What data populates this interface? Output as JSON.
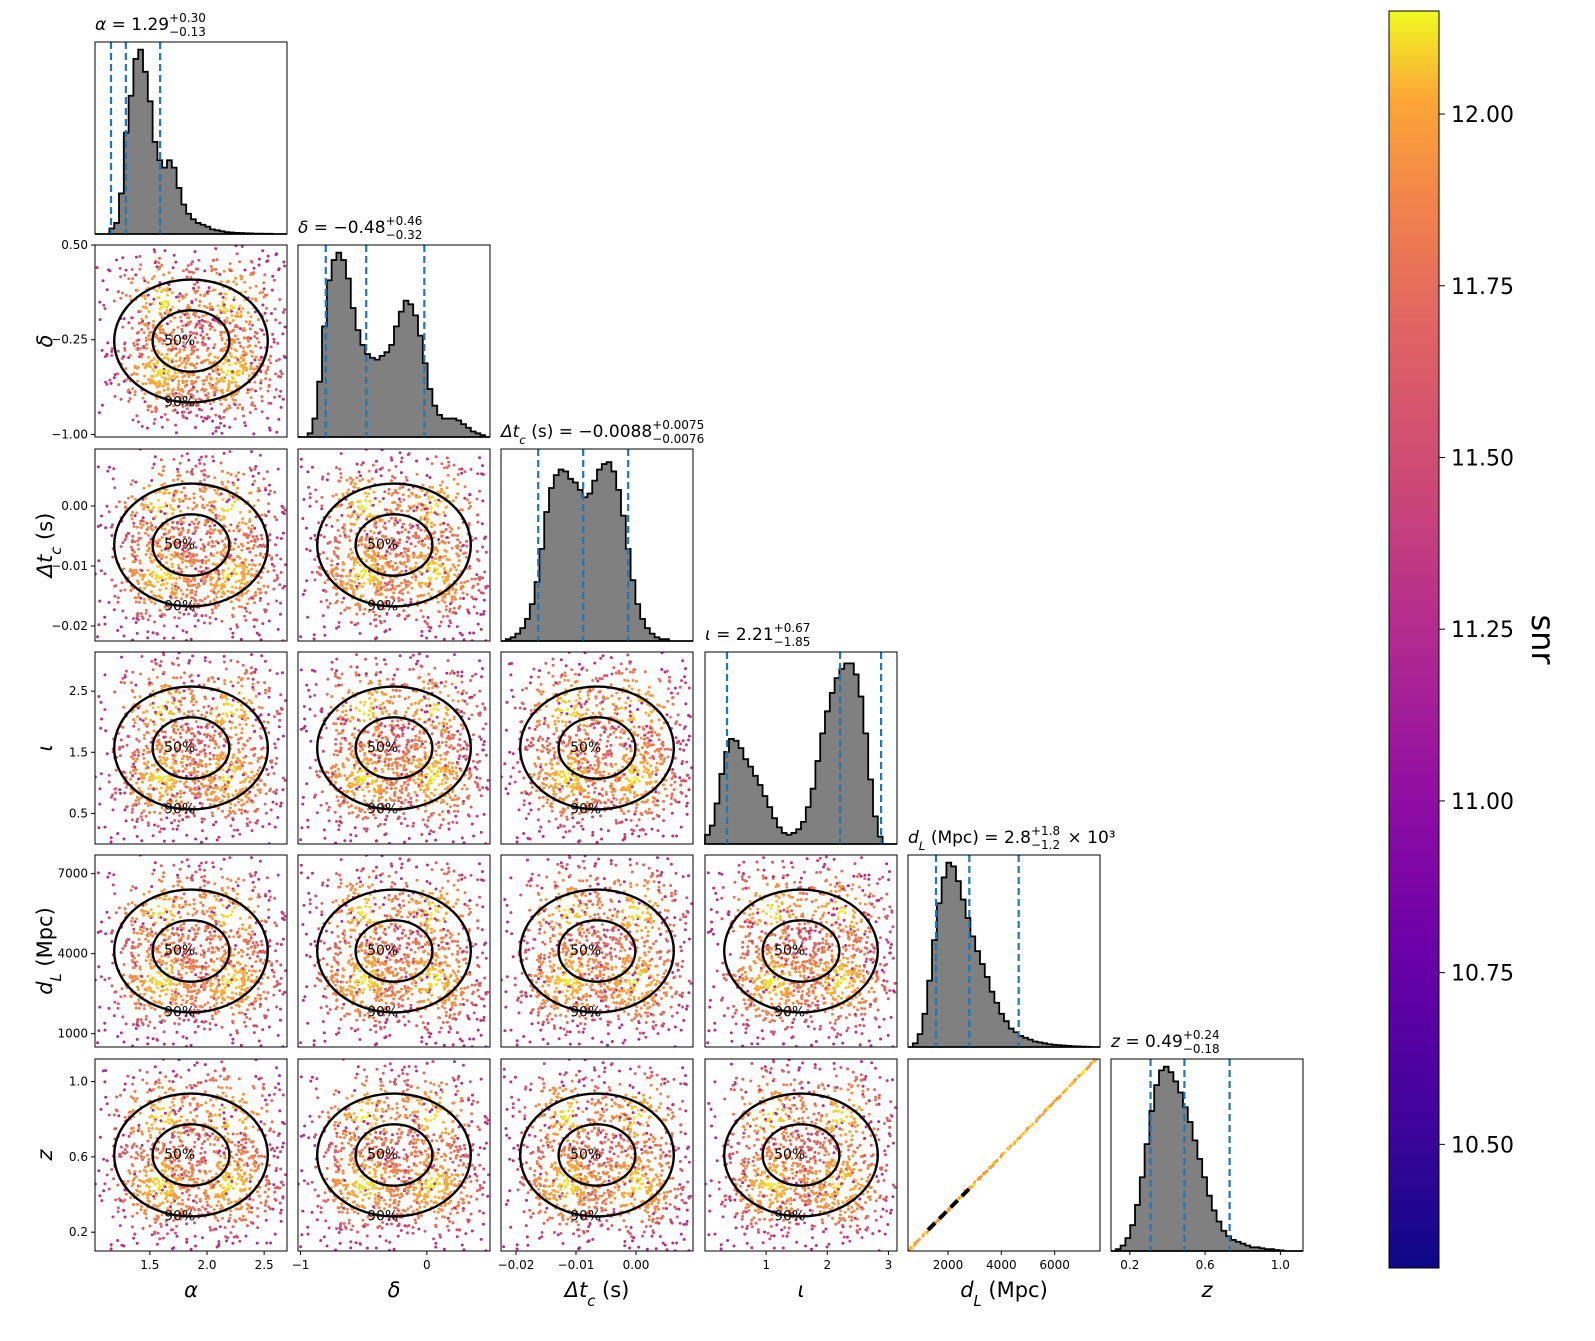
{
  "chart_data": {
    "type": "corner",
    "params": [
      {
        "id": "alpha",
        "label": "α",
        "range": [
          1.02,
          2.7
        ],
        "ticks": [
          1.5,
          2.0,
          2.5
        ],
        "tick_labels": [
          "1.5",
          "2.0",
          "2.5"
        ],
        "title": "α = 1.29",
        "title_sup": "+0.30",
        "title_sub": "−0.13",
        "title_suffix": "",
        "quantiles": [
          1.16,
          1.29,
          1.59
        ],
        "hist": [
          0,
          0,
          0,
          0.03,
          0.06,
          0.22,
          0.55,
          0.75,
          0.95,
          1.0,
          0.88,
          0.72,
          0.5,
          0.4,
          0.36,
          0.4,
          0.36,
          0.25,
          0.16,
          0.11,
          0.08,
          0.06,
          0.05,
          0.04,
          0.025,
          0.02,
          0.015,
          0.01,
          0.008,
          0.006,
          0.005,
          0.004,
          0.003,
          0.002,
          0.002,
          0.001,
          0.001,
          0,
          0,
          0
        ]
      },
      {
        "id": "delta",
        "label": "δ",
        "range": [
          -1.02,
          0.5
        ],
        "ticks": [
          -1,
          0
        ],
        "tick_labels": [
          "−1",
          "0"
        ],
        "yticks": [
          -1.0,
          -0.25,
          0.5
        ],
        "ytick_labels": [
          "−1.00",
          "−0.25",
          "0.50"
        ],
        "title": "δ = −0.48",
        "title_sup": "+0.46",
        "title_sub": "−0.32",
        "title_suffix": "",
        "quantiles": [
          -0.8,
          -0.48,
          -0.02
        ],
        "hist": [
          0,
          0,
          0.02,
          0.1,
          0.3,
          0.6,
          0.85,
          0.96,
          1.0,
          0.96,
          0.86,
          0.7,
          0.58,
          0.5,
          0.45,
          0.43,
          0.42,
          0.44,
          0.46,
          0.5,
          0.6,
          0.68,
          0.74,
          0.72,
          0.66,
          0.55,
          0.4,
          0.26,
          0.17,
          0.12,
          0.1,
          0.1,
          0.1,
          0.09,
          0.07,
          0.05,
          0.03,
          0.02,
          0.01,
          0
        ]
      },
      {
        "id": "dtc",
        "label": "Δt_c (s)",
        "range": [
          -0.0225,
          0.0095
        ],
        "ticks": [
          -0.02,
          -0.01,
          0.0
        ],
        "tick_labels": [
          "−0.02",
          "−0.01",
          "0.00"
        ],
        "yticks": [
          -0.02,
          -0.01,
          0.0
        ],
        "ytick_labels": [
          "−0.02",
          "−0.01",
          "0.00"
        ],
        "title": "Δt_c (s) = −0.0088",
        "title_sup": "+0.0075",
        "title_sub": "−0.0076",
        "title_suffix": "",
        "quantiles": [
          -0.0163,
          -0.0088,
          -0.0013
        ],
        "hist": [
          0,
          0.01,
          0.02,
          0.04,
          0.07,
          0.12,
          0.2,
          0.32,
          0.5,
          0.7,
          0.83,
          0.9,
          0.93,
          0.92,
          0.88,
          0.86,
          0.82,
          0.78,
          0.8,
          0.87,
          0.93,
          0.96,
          0.97,
          0.92,
          0.82,
          0.68,
          0.5,
          0.33,
          0.2,
          0.12,
          0.07,
          0.04,
          0.02,
          0.01,
          0.01,
          0,
          0,
          0,
          0,
          0
        ]
      },
      {
        "id": "iota",
        "label": "ι",
        "range": [
          0.0,
          3.14
        ],
        "ticks": [
          1,
          2,
          3
        ],
        "tick_labels": [
          "1",
          "2",
          "3"
        ],
        "yticks": [
          0.5,
          1.5,
          2.5
        ],
        "ytick_labels": [
          "0.5",
          "1.5",
          "2.5"
        ],
        "title": "ι = 2.21",
        "title_sup": "+0.67",
        "title_sub": "−1.85",
        "title_suffix": "",
        "quantiles": [
          0.36,
          2.21,
          2.88
        ],
        "hist": [
          0.05,
          0.1,
          0.22,
          0.38,
          0.5,
          0.57,
          0.56,
          0.52,
          0.46,
          0.42,
          0.37,
          0.32,
          0.26,
          0.2,
          0.14,
          0.09,
          0.06,
          0.05,
          0.06,
          0.08,
          0.12,
          0.2,
          0.3,
          0.45,
          0.6,
          0.72,
          0.82,
          0.9,
          0.95,
          0.98,
          0.98,
          0.92,
          0.8,
          0.6,
          0.35,
          0.15,
          0.04,
          0,
          0,
          0
        ]
      },
      {
        "id": "dL",
        "label": "d_L (Mpc)",
        "range": [
          500,
          7700
        ],
        "ticks": [
          2000,
          4000,
          6000
        ],
        "tick_labels": [
          "2000",
          "4000",
          "6000"
        ],
        "yticks": [
          1000,
          4000,
          7000
        ],
        "ytick_labels": [
          "1000",
          "4000",
          "7000"
        ],
        "title": "d_L (Mpc) = 2.8",
        "title_sup": "+1.8",
        "title_sub": "−1.2",
        "title_suffix": "× 10³",
        "quantiles": [
          1550,
          2800,
          4650
        ],
        "hist": [
          0,
          0.02,
          0.07,
          0.18,
          0.36,
          0.58,
          0.78,
          0.92,
          1.0,
          0.98,
          0.9,
          0.8,
          0.7,
          0.6,
          0.52,
          0.45,
          0.38,
          0.3,
          0.24,
          0.18,
          0.14,
          0.1,
          0.08,
          0.06,
          0.05,
          0.04,
          0.03,
          0.025,
          0.02,
          0.015,
          0.012,
          0.01,
          0.008,
          0.006,
          0.004,
          0.003,
          0.002,
          0.001,
          0,
          0
        ]
      },
      {
        "id": "z",
        "label": "z",
        "range": [
          0.1,
          1.12
        ],
        "ticks": [
          0.2,
          0.6,
          1.0
        ],
        "tick_labels": [
          "0.2",
          "0.6",
          "1.0"
        ],
        "yticks": [
          0.2,
          0.6,
          1.0
        ],
        "ytick_labels": [
          "0.2",
          "0.6",
          "1.0"
        ],
        "title": "z = 0.49",
        "title_sup": "+0.24",
        "title_sub": "−0.18",
        "title_suffix": "",
        "quantiles": [
          0.31,
          0.49,
          0.73
        ],
        "hist": [
          0,
          0.01,
          0.03,
          0.07,
          0.14,
          0.25,
          0.4,
          0.58,
          0.76,
          0.9,
          0.98,
          1.0,
          0.97,
          0.92,
          0.86,
          0.78,
          0.7,
          0.6,
          0.5,
          0.4,
          0.3,
          0.22,
          0.16,
          0.11,
          0.08,
          0.06,
          0.05,
          0.04,
          0.03,
          0.02,
          0.02,
          0.015,
          0.01,
          0.01,
          0.005,
          0.003,
          0,
          0,
          0,
          0
        ]
      }
    ],
    "contour_levels": [
      "50%",
      "90%"
    ],
    "colorbar": {
      "label": "snr",
      "range": [
        10.32,
        12.15
      ],
      "ticks": [
        10.5,
        10.75,
        11.0,
        11.25,
        11.5,
        11.75,
        12.0
      ],
      "tick_labels": [
        "10.50",
        "10.75",
        "11.00",
        "11.25",
        "11.50",
        "11.75",
        "12.00"
      ],
      "cmap": "plasma"
    },
    "colors": {
      "hist_fill": "#808080",
      "quantile_line": "#1f77b4",
      "contour": "#000000"
    }
  }
}
